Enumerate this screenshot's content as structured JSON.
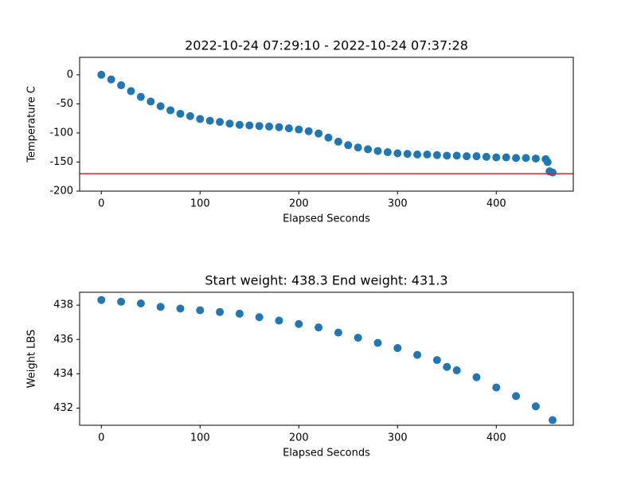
{
  "chart_data": [
    {
      "type": "scatter",
      "title": "2022-10-24 07:29:10 - 2022-10-24 07:37:28",
      "x_label": "Elapsed Seconds",
      "y_label": "Temperature C",
      "x": [
        0,
        10,
        20,
        30,
        40,
        50,
        60,
        70,
        80,
        90,
        100,
        110,
        120,
        130,
        140,
        150,
        160,
        170,
        180,
        190,
        200,
        210,
        220,
        230,
        240,
        250,
        260,
        270,
        280,
        290,
        300,
        310,
        320,
        330,
        340,
        350,
        360,
        370,
        380,
        390,
        400,
        410,
        420,
        430,
        440,
        450,
        452,
        454,
        457
      ],
      "series": [
        {
          "name": "Temperature C",
          "color": "#1f77b4",
          "values": [
            0,
            -8,
            -18,
            -28,
            -38,
            -46,
            -54,
            -61,
            -67,
            -71,
            -76,
            -79,
            -81,
            -84,
            -86,
            -87,
            -88,
            -89,
            -90,
            -92,
            -94,
            -97,
            -101,
            -108,
            -115,
            -121,
            -125,
            -128,
            -131,
            -133,
            -135,
            -136,
            -137,
            -137,
            -138,
            -139,
            -139,
            -140,
            -140,
            -141,
            -142,
            -142,
            -143,
            -143,
            -144,
            -145,
            -150,
            -166,
            -168
          ]
        }
      ],
      "hline": {
        "value": -170,
        "color": "#d62728"
      },
      "xlim": [
        -22,
        478
      ],
      "xticks": [
        0,
        100,
        200,
        300,
        400
      ],
      "ylim": [
        -200,
        30
      ],
      "yticks": [
        0,
        -50,
        -100,
        -150,
        -200
      ]
    },
    {
      "type": "scatter",
      "title": "Start weight: 438.3 End weight: 431.3",
      "x_label": "Elapsed Seconds",
      "y_label": "Weight LBS",
      "x": [
        0,
        20,
        40,
        60,
        80,
        100,
        120,
        140,
        160,
        180,
        200,
        220,
        240,
        260,
        280,
        300,
        320,
        340,
        350,
        360,
        380,
        400,
        420,
        440,
        457
      ],
      "series": [
        {
          "name": "Weight LBS",
          "color": "#1f77b4",
          "values": [
            438.3,
            438.2,
            438.1,
            437.9,
            437.8,
            437.7,
            437.6,
            437.5,
            437.3,
            437.1,
            436.9,
            436.7,
            436.4,
            436.1,
            435.8,
            435.5,
            435.1,
            434.8,
            434.4,
            434.2,
            433.8,
            433.2,
            432.7,
            432.1,
            431.3
          ]
        }
      ],
      "xlim": [
        -22,
        478
      ],
      "xticks": [
        0,
        100,
        200,
        300,
        400
      ],
      "ylim": [
        431,
        438.75
      ],
      "yticks": [
        432,
        434,
        436,
        438
      ]
    }
  ]
}
